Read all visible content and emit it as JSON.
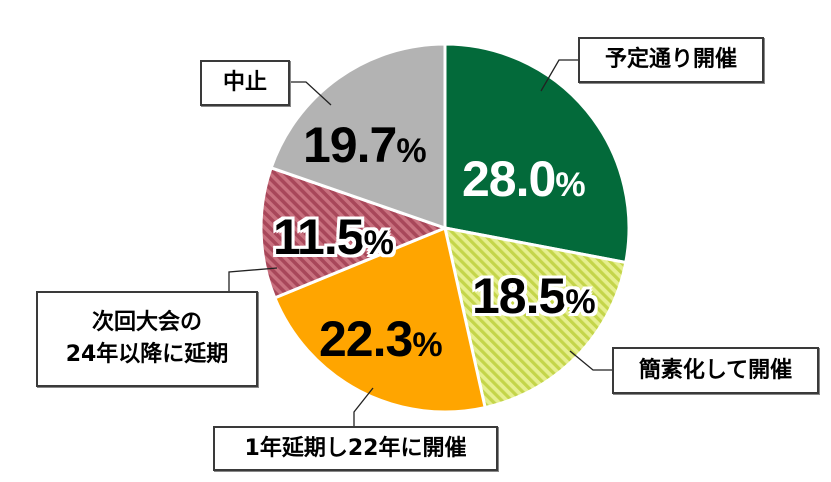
{
  "chart_data": {
    "type": "pie",
    "title": "",
    "start_angle": "12 o'clock",
    "direction": "clockwise",
    "slices": [
      {
        "label": "予定通り開催",
        "value": 28.0,
        "display": "28.0",
        "color": "#036a3a",
        "pattern": "solid"
      },
      {
        "label": "簡素化して開催",
        "value": 18.5,
        "display": "18.5",
        "color": "#d6e36a",
        "pattern": "diagonal-hatch"
      },
      {
        "label": "1年延期し22年に開催",
        "value": 22.3,
        "display": "22.3",
        "color": "#ffa500",
        "pattern": "solid"
      },
      {
        "label": "次回大会の24年以降に延期",
        "value": 11.5,
        "display": "11.5",
        "color": "#b84f63",
        "pattern": "diagonal-hatch"
      },
      {
        "label": "中止",
        "value": 19.7,
        "display": "19.7",
        "color": "#b3b3b3",
        "pattern": "solid"
      }
    ],
    "unit": "%"
  },
  "labels": {
    "planned": "予定通り開催",
    "simplified": "簡素化して開催",
    "postponed_22": "1年延期し22年に開催",
    "postponed_24_line1": "次回大会の",
    "postponed_24_line2": "24年以降に延期",
    "cancelled": "中止"
  },
  "values": {
    "planned": "28.0",
    "simplified": "18.5",
    "postponed_22": "22.3",
    "postponed_24": "11.5",
    "cancelled": "19.7",
    "unit": "%"
  }
}
